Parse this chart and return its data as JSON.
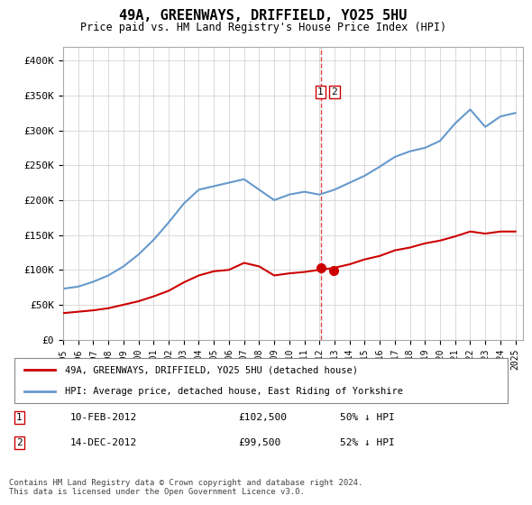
{
  "title": "49A, GREENWAYS, DRIFFIELD, YO25 5HU",
  "subtitle": "Price paid vs. HM Land Registry's House Price Index (HPI)",
  "ylabel": "",
  "ylim": [
    0,
    420000
  ],
  "yticks": [
    0,
    50000,
    100000,
    150000,
    200000,
    250000,
    300000,
    350000,
    400000
  ],
  "ytick_labels": [
    "£0",
    "£50K",
    "£100K",
    "£150K",
    "£200K",
    "£250K",
    "£300K",
    "£350K",
    "£400K"
  ],
  "xlim_start": 1995.0,
  "xlim_end": 2025.5,
  "hpi_color": "#6699cc",
  "property_color": "#cc0000",
  "marker_color": "#cc0000",
  "vline_color": "#cc0000",
  "background_color": "#ffffff",
  "grid_color": "#cccccc",
  "legend_label_property": "49A, GREENWAYS, DRIFFIELD, YO25 5HU (detached house)",
  "legend_label_hpi": "HPI: Average price, detached house, East Riding of Yorkshire",
  "transaction1_label": "1",
  "transaction1_date": "10-FEB-2012",
  "transaction1_price": "£102,500",
  "transaction1_hpi": "50% ↓ HPI",
  "transaction2_label": "2",
  "transaction2_date": "14-DEC-2012",
  "transaction2_price": "£99,500",
  "transaction2_hpi": "52% ↓ HPI",
  "vline_x": 2012.1,
  "marker1_x": 2012.1,
  "marker1_y": 102500,
  "marker2_x": 2012.95,
  "marker2_y": 99500,
  "copyright": "Contains HM Land Registry data © Crown copyright and database right 2024.\nThis data is licensed under the Open Government Licence v3.0.",
  "hpi_years": [
    1995,
    1996,
    1997,
    1998,
    1999,
    2000,
    2001,
    2002,
    2003,
    2004,
    2005,
    2006,
    2007,
    2008,
    2009,
    2010,
    2011,
    2012,
    2013,
    2014,
    2015,
    2016,
    2017,
    2018,
    2019,
    2020,
    2021,
    2022,
    2023,
    2024,
    2025
  ],
  "hpi_values": [
    73000,
    76000,
    83000,
    92000,
    105000,
    122000,
    143000,
    168000,
    195000,
    215000,
    220000,
    225000,
    230000,
    215000,
    200000,
    208000,
    212000,
    208000,
    215000,
    225000,
    235000,
    248000,
    262000,
    270000,
    275000,
    285000,
    310000,
    330000,
    305000,
    320000,
    325000
  ],
  "property_years": [
    1995,
    1996,
    1997,
    1998,
    1999,
    2000,
    2001,
    2002,
    2003,
    2004,
    2005,
    2006,
    2007,
    2008,
    2009,
    2010,
    2011,
    2012,
    2013,
    2014,
    2015,
    2016,
    2017,
    2018,
    2019,
    2020,
    2021,
    2022,
    2023,
    2024,
    2025
  ],
  "property_values": [
    38000,
    40000,
    42000,
    45000,
    50000,
    55000,
    62000,
    70000,
    82000,
    92000,
    98000,
    100000,
    110000,
    105000,
    92000,
    95000,
    97000,
    100000,
    103000,
    108000,
    115000,
    120000,
    128000,
    132000,
    138000,
    142000,
    148000,
    155000,
    152000,
    155000,
    155000
  ]
}
